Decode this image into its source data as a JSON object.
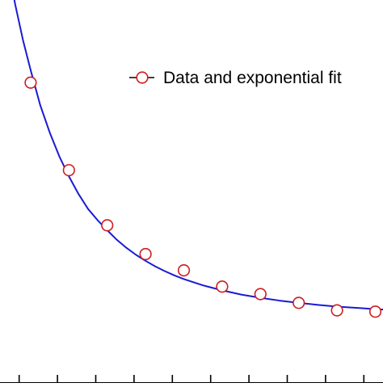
{
  "chart_data": {
    "type": "scatter",
    "title": "",
    "xlabel": "",
    "ylabel": "",
    "legend": {
      "position": "top-right",
      "entries": [
        "Data and exponential fit"
      ]
    },
    "grid": false,
    "series": [
      {
        "name": "Data and exponential fit",
        "kind": "points",
        "marker": "open-circle",
        "color": "#cc1f1f",
        "x": [
          0,
          1,
          2,
          3,
          4,
          5,
          6,
          7,
          8,
          9
        ],
        "y": [
          0.95,
          0.6,
          0.38,
          0.265,
          0.2,
          0.135,
          0.105,
          0.07,
          0.04,
          0.035
        ]
      },
      {
        "name": "",
        "kind": "line",
        "color": "#1a1ad6",
        "fit": "exponential",
        "x": [
          -0.6,
          -0.4,
          -0.2,
          0,
          0.25,
          0.5,
          0.75,
          1,
          1.25,
          1.5,
          1.75,
          2,
          2.25,
          2.5,
          2.75,
          3,
          3.25,
          3.5,
          3.75,
          4,
          4.5,
          5,
          5.5,
          6,
          6.5,
          7,
          7.5,
          8,
          8.5,
          9,
          9.5,
          10
        ],
        "y": [
          1.42,
          1.26,
          1.12,
          1.0,
          0.86,
          0.75,
          0.655,
          0.575,
          0.505,
          0.445,
          0.4,
          0.36,
          0.322,
          0.29,
          0.262,
          0.238,
          0.216,
          0.197,
          0.18,
          0.165,
          0.14,
          0.12,
          0.103,
          0.09,
          0.079,
          0.07,
          0.062,
          0.055,
          0.05,
          0.045,
          0.041,
          0.038
        ]
      }
    ],
    "xlim": [
      -0.8,
      9.2
    ],
    "ylim": [
      -0.25,
      1.28
    ],
    "x_ticks": [
      -0.3,
      0.7,
      1.7,
      2.7,
      3.7,
      4.7,
      5.7,
      6.7,
      7.7,
      8.7
    ],
    "colors": {
      "axis": "#000000",
      "fit_line": "#1a1ad6",
      "marker": "#cc1f1f"
    }
  }
}
